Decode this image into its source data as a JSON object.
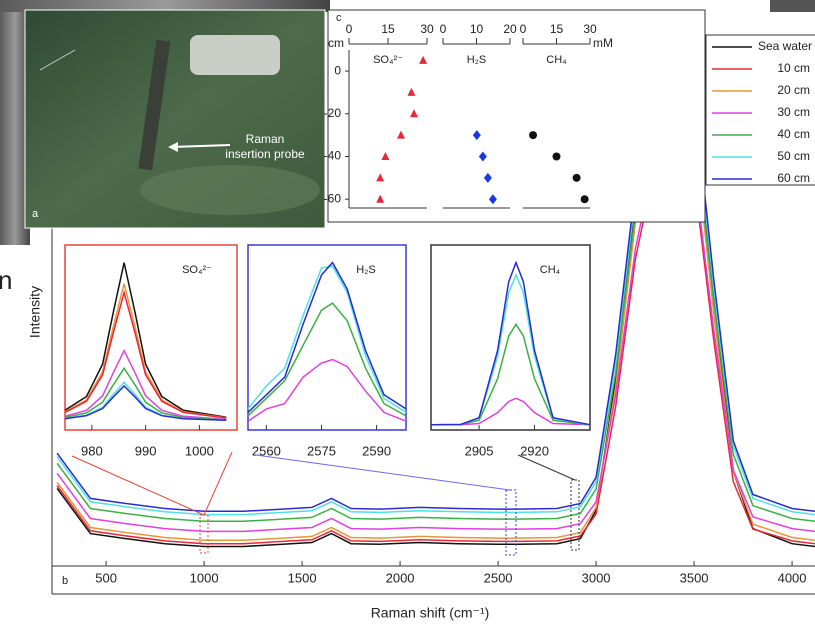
{
  "fragment": "n",
  "photo": {
    "panel_label": "a",
    "annotation": [
      "Raman",
      "insertion probe"
    ]
  },
  "chart_data": [
    {
      "type": "line",
      "panel_label": "b",
      "x_label": "Raman shift (cm⁻¹)",
      "y_label": "Intensity",
      "x": [
        250,
        420,
        600,
        800,
        1000,
        1200,
        1400,
        1550,
        1650,
        1750,
        1900,
        2100,
        2300,
        2500,
        2600,
        2800,
        2920,
        3000,
        3100,
        3200,
        3270,
        3350,
        3430,
        3500,
        3600,
        3700,
        3800,
        4000,
        4117
      ],
      "xlim": [
        224,
        4117
      ],
      "ylim": [
        4,
        100
      ],
      "xticks": [
        500,
        1000,
        1500,
        2000,
        2500,
        3000,
        3500,
        4000
      ],
      "series": [
        {
          "name": "Sea water",
          "color": "#111111",
          "values": [
            17.9,
            9.8,
            8.9,
            8.0,
            7.5,
            7.5,
            7.9,
            8.2,
            9.8,
            8.0,
            7.9,
            8.2,
            8.0,
            7.9,
            7.9,
            8.0,
            8.9,
            14.0,
            37.5,
            69.6,
            84.0,
            89.0,
            97.0,
            87.5,
            52.0,
            21.0,
            10.7,
            8.0,
            7.5
          ]
        },
        {
          "name": "10 cm",
          "color": "#e8283a",
          "values": [
            18.4,
            10.3,
            9.4,
            8.5,
            8.0,
            8.0,
            8.4,
            8.7,
            10.3,
            8.5,
            8.4,
            8.7,
            8.5,
            8.4,
            8.4,
            8.5,
            9.4,
            13.3,
            32.6,
            58.9,
            70.7,
            74.8,
            81.4,
            73.6,
            44.5,
            19.1,
            10.6,
            8.5,
            8.0
          ]
        },
        {
          "name": "20 cm",
          "color": "#e8963a",
          "values": [
            19.0,
            10.9,
            10.0,
            9.1,
            8.6,
            8.6,
            9.0,
            9.3,
            10.9,
            9.1,
            9.0,
            9.3,
            9.1,
            9.0,
            9.0,
            9.1,
            10.0,
            14.5,
            36.1,
            65.4,
            78.6,
            83.2,
            90.5,
            81.8,
            49.3,
            21.0,
            11.5,
            9.1,
            8.6
          ]
        },
        {
          "name": "30 cm",
          "color": "#e040e0",
          "values": [
            20.6,
            12.5,
            11.6,
            10.7,
            10.2,
            10.2,
            10.6,
            10.9,
            12.5,
            10.7,
            10.6,
            10.9,
            10.7,
            10.6,
            10.6,
            10.7,
            11.6,
            15.5,
            34.6,
            60.7,
            72.4,
            76.5,
            83.0,
            75.2,
            46.4,
            21.2,
            12.8,
            10.7,
            10.2
          ]
        },
        {
          "name": "40 cm",
          "color": "#3cb043",
          "values": [
            22.4,
            14.3,
            13.4,
            12.5,
            12.0,
            12.0,
            12.4,
            12.7,
            14.3,
            12.5,
            12.4,
            12.7,
            12.5,
            12.4,
            12.4,
            12.5,
            13.4,
            17.8,
            38.6,
            67.1,
            79.9,
            84.4,
            91.5,
            83.0,
            51.5,
            24.0,
            14.8,
            12.5,
            12.0
          ]
        },
        {
          "name": "50 cm",
          "color": "#4ee0e8",
          "values": [
            23.6,
            15.5,
            14.6,
            13.7,
            13.2,
            13.2,
            13.6,
            13.9,
            15.5,
            13.7,
            13.6,
            13.9,
            13.7,
            13.6,
            13.6,
            13.7,
            14.6,
            19.1,
            40.6,
            70.0,
            83.1,
            87.7,
            95.0,
            86.3,
            53.9,
            25.5,
            16.1,
            13.7,
            13.2
          ]
        },
        {
          "name": "60 cm",
          "color": "#2a2ad0",
          "values": [
            24.2,
            16.1,
            15.2,
            14.3,
            13.8,
            13.8,
            14.2,
            14.5,
            16.1,
            14.3,
            14.2,
            14.5,
            14.3,
            14.2,
            14.2,
            14.3,
            15.2,
            19.9,
            41.9,
            71.9,
            85.3,
            90.0,
            97.5,
            88.6,
            55.4,
            26.4,
            16.8,
            14.3,
            13.8
          ]
        }
      ]
    },
    {
      "type": "line",
      "title": "SO₄²⁻",
      "frame_color": "#e8443a",
      "x": [
        975,
        979,
        982,
        984,
        986,
        988,
        990,
        993,
        997,
        1005
      ],
      "xlim": [
        975,
        1007
      ],
      "ylim": [
        0,
        105
      ],
      "xticks": [
        980,
        990,
        1000
      ],
      "series": [
        {
          "color": "#111111",
          "values": [
            11.2,
            19.0,
            37.4,
            67.1,
            95,
            67.1,
            37.4,
            19.0,
            11.2,
            7.2
          ]
        },
        {
          "color": "#e8963a",
          "values": [
            10.4,
            17.1,
            33.1,
            58.8,
            83,
            58.8,
            33.1,
            17.1,
            10.4,
            6.9
          ]
        },
        {
          "color": "#e8283a",
          "values": [
            10.0,
            16.3,
            31.3,
            55.4,
            78,
            55.4,
            31.3,
            16.3,
            10.0,
            6.8
          ]
        },
        {
          "color": "#e040e0",
          "values": [
            7.8,
            11.2,
            19.4,
            32.6,
            45,
            32.6,
            19.4,
            11.2,
            7.8,
            6.0
          ]
        },
        {
          "color": "#3cb043",
          "values": [
            7.1,
            9.7,
            15.8,
            25.7,
            35,
            25.7,
            15.8,
            9.7,
            7.1,
            5.7
          ]
        },
        {
          "color": "#4ee0e8",
          "values": [
            6.5,
            8.4,
            12.9,
            20.2,
            27,
            20.2,
            12.9,
            8.4,
            6.5,
            5.5
          ]
        },
        {
          "color": "#2a2ad0",
          "values": [
            6.4,
            8.1,
            12.2,
            18.8,
            25,
            18.8,
            12.2,
            8.1,
            6.4,
            5.5
          ]
        }
      ]
    },
    {
      "type": "line",
      "title": "H₂S",
      "frame_color": "#3a3ad8",
      "x": [
        2555,
        2560,
        2565,
        2570,
        2575,
        2578,
        2582,
        2587,
        2592,
        2598
      ],
      "xlim": [
        2555,
        2598
      ],
      "ylim": [
        0,
        105
      ],
      "xticks": [
        2560,
        2575,
        2590
      ],
      "series": [
        {
          "color": "#e040e0",
          "values": [
            5,
            12,
            15,
            30,
            38,
            40,
            36,
            22,
            10,
            5
          ]
        },
        {
          "color": "#3cb043",
          "values": [
            8,
            18,
            28,
            48,
            68,
            72,
            62,
            35,
            15,
            8
          ]
        },
        {
          "color": "#4ee0e8",
          "values": [
            12,
            25,
            35,
            65,
            92,
            93,
            78,
            42,
            18,
            10
          ]
        },
        {
          "color": "#2a2ad0",
          "values": [
            10,
            20,
            30,
            60,
            88,
            95,
            80,
            45,
            20,
            12
          ]
        }
      ]
    },
    {
      "type": "line",
      "title": "CH₄",
      "frame_color": "#333333",
      "x": [
        2892,
        2900,
        2905,
        2910,
        2913,
        2915,
        2917,
        2920,
        2925,
        2935
      ],
      "xlim": [
        2892,
        2935
      ],
      "ylim": [
        0,
        105
      ],
      "xticks": [
        2905,
        2920
      ],
      "series": [
        {
          "color": "#e040e0",
          "values": [
            3,
            3,
            3.7,
            9.9,
            16.2,
            18,
            16.2,
            9.9,
            3.7,
            3
          ]
        },
        {
          "color": "#3cb043",
          "values": [
            3,
            3.1,
            5.5,
            29.1,
            53.3,
            60,
            53.3,
            29.1,
            5.5,
            3
          ]
        },
        {
          "color": "#4ee0e8",
          "values": [
            3,
            3.1,
            6.7,
            41.9,
            78,
            88,
            78,
            41.9,
            6.7,
            3
          ]
        },
        {
          "color": "#2a2ad0",
          "values": [
            3,
            3.1,
            7.0,
            45.1,
            84.1,
            95,
            84.1,
            45.1,
            7.0,
            3
          ]
        }
      ]
    },
    {
      "type": "scatter",
      "panel_label": "c",
      "depth_label": "cm",
      "conc_label": "mM",
      "ylim": [
        8,
        -66
      ],
      "yticks": [
        0,
        -20,
        -40,
        -60
      ],
      "panels": [
        {
          "title": "SO₄²⁻",
          "xlim": [
            0,
            30
          ],
          "xticks": [
            0,
            15,
            30
          ],
          "color": "#e8283a",
          "marker": "triangle",
          "depth": [
            5,
            -10,
            -20,
            -30,
            -40,
            -50,
            -60
          ],
          "concentration": [
            28.5,
            24,
            25,
            20,
            14,
            12,
            12
          ]
        },
        {
          "title": "H₂S",
          "xlim": [
            0,
            20
          ],
          "xticks": [
            0,
            10,
            20
          ],
          "color": "#1a3ae0",
          "marker": "diamond",
          "depth": [
            -30,
            -40,
            -50,
            -60
          ],
          "concentration": [
            10.1,
            11.9,
            13.4,
            14.9
          ]
        },
        {
          "title": "CH₄",
          "xlim": [
            0,
            30
          ],
          "xticks": [
            0,
            15,
            30
          ],
          "color": "#111111",
          "marker": "circle",
          "depth": [
            -30,
            -40,
            -50,
            -60
          ],
          "concentration": [
            4.5,
            15,
            24,
            27.6
          ]
        }
      ]
    }
  ]
}
